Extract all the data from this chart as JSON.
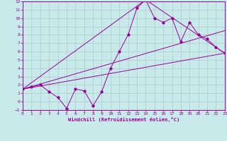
{
  "xlabel": "Windchill (Refroidissement éolien,°C)",
  "bg_color": "#c8eaea",
  "grid_color": "#b0c8c8",
  "line_color": "#990099",
  "xlim": [
    0,
    23
  ],
  "ylim": [
    -1,
    12
  ],
  "xticks": [
    0,
    1,
    2,
    3,
    4,
    5,
    6,
    7,
    8,
    9,
    10,
    11,
    12,
    13,
    14,
    15,
    16,
    17,
    18,
    19,
    20,
    21,
    22,
    23
  ],
  "yticks": [
    -1,
    0,
    1,
    2,
    3,
    4,
    5,
    6,
    7,
    8,
    9,
    10,
    11,
    12
  ],
  "series1_x": [
    0,
    1,
    2,
    3,
    4,
    5,
    6,
    7,
    8,
    9,
    10,
    11,
    12,
    13,
    14,
    15,
    16,
    17,
    18,
    19,
    20,
    21,
    22,
    23
  ],
  "series1_y": [
    1.5,
    1.8,
    2.0,
    1.2,
    0.5,
    -0.8,
    1.5,
    1.3,
    -0.5,
    1.2,
    4.0,
    6.0,
    8.0,
    11.2,
    12.2,
    10.0,
    9.5,
    10.0,
    7.2,
    9.5,
    8.0,
    7.5,
    6.5,
    5.8
  ],
  "series2_x": [
    0,
    23
  ],
  "series2_y": [
    1.5,
    5.8
  ],
  "series3_x": [
    0,
    14,
    23
  ],
  "series3_y": [
    1.5,
    12.2,
    5.8
  ],
  "series4_x": [
    0,
    23
  ],
  "series4_y": [
    1.5,
    8.5
  ]
}
